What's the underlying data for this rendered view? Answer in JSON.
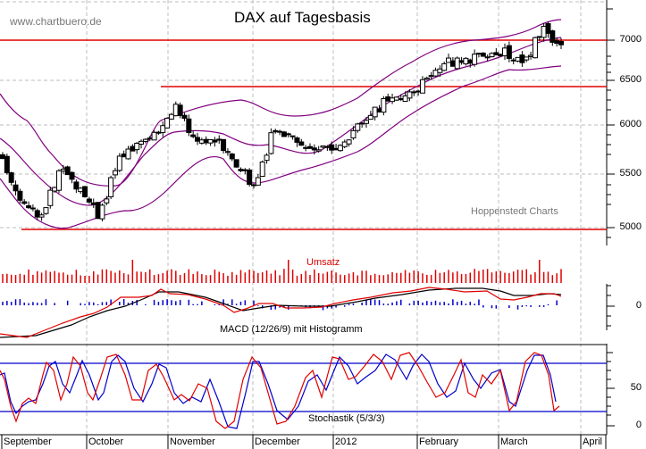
{
  "header": {
    "title": "DAX auf Tagesbasis",
    "website": "www.chartbuero.de",
    "credit": "Hoppenstedt Charts"
  },
  "panels": {
    "volume_label": "Umsatz",
    "macd_label": "MACD (12/26/9) mit Histogramm",
    "stoch_label": "Stochastik (5/3/3)"
  },
  "axes": {
    "price_ticks": [
      "7000",
      "6500",
      "6000",
      "5500",
      "5000"
    ],
    "macd_ticks": [
      "0"
    ],
    "stoch_ticks": [
      "50",
      "0"
    ],
    "months": [
      "September",
      "October",
      "November",
      "December",
      "2012",
      "February",
      "March",
      "April"
    ]
  },
  "colors": {
    "bands": "#800080",
    "resistance": "#e00000",
    "volume": "#e00000",
    "macd_line": "#e00000",
    "signal_line": "#000000",
    "histogram": "#0000cc",
    "stoch_k": "#e00000",
    "stoch_d": "#0000cc",
    "stoch_levels": "#0000cc"
  },
  "chart_data": {
    "type": "candlestick",
    "title": "DAX auf Tagesbasis",
    "xlabel": "",
    "ylabel": "",
    "ylim": [
      4950,
      7300
    ],
    "x_categories": [
      "September",
      "October",
      "November",
      "December",
      "2012",
      "February",
      "March",
      "April"
    ],
    "horizontal_levels": [
      7000,
      6450,
      5000
    ],
    "indicators": [
      "Bollinger Bands",
      "Umsatz (Volume)",
      "MACD (12/26/9) mit Histogramm",
      "Stochastik (5/3/3)"
    ],
    "close_series_approx": {
      "x": [
        "Sep 1",
        "Sep 8",
        "Sep 15",
        "Sep 22",
        "Sep 29",
        "Oct 6",
        "Oct 13",
        "Oct 20",
        "Oct 27",
        "Nov 3",
        "Nov 10",
        "Nov 17",
        "Nov 24",
        "Dec 1",
        "Dec 8",
        "Dec 15",
        "Dec 22",
        "Dec 29",
        "Jan 5",
        "Jan 12",
        "Jan 19",
        "Jan 26",
        "Feb 2",
        "Feb 9",
        "Feb 16",
        "Feb 23",
        "Mar 2",
        "Mar 9",
        "Mar 16",
        "Mar 23"
      ],
      "values": [
        5750,
        5300,
        5150,
        5600,
        5450,
        5150,
        5700,
        5950,
        6050,
        6300,
        5950,
        5950,
        5750,
        5450,
        6000,
        6050,
        5800,
        5850,
        6000,
        6150,
        6400,
        6450,
        6550,
        6750,
        6800,
        6850,
        6900,
        6750,
        7100,
        6980
      ]
    },
    "stochastic_levels": [
      20,
      80
    ]
  }
}
